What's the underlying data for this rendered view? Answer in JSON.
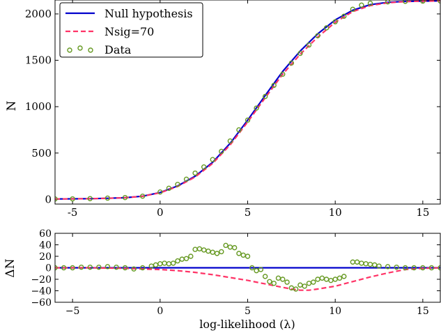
{
  "chart_data": [
    {
      "type": "line",
      "title": "",
      "xlabel": "",
      "ylabel": "N",
      "xlim": [
        -6,
        16
      ],
      "ylim": [
        -50,
        2150
      ],
      "xticks": [
        -5,
        0,
        5,
        10,
        15
      ],
      "yticks": [
        0,
        500,
        1000,
        1500,
        2000
      ],
      "x_tick_labels": [
        "-5",
        "0",
        "5",
        "10",
        "15"
      ],
      "y_tick_labels": [
        "0",
        "500",
        "1000",
        "1500",
        "2000"
      ],
      "grid": false,
      "legend_position": "top-left",
      "legend": [
        {
          "label": "Null hypothesis",
          "style": "solid-line",
          "color": "#0000cc"
        },
        {
          "label": "Nsig=70",
          "style": "dashed-line",
          "color": "#ff3366"
        },
        {
          "label": "Data",
          "style": "open-circles",
          "color": "#669922"
        }
      ],
      "series": [
        {
          "name": "Null hypothesis",
          "style": "solid-line",
          "color": "#0000cc",
          "x": [
            -6,
            -5,
            -4,
            -3,
            -2,
            -1,
            0,
            1,
            2,
            3,
            4,
            5,
            6,
            7,
            8,
            9,
            10,
            11,
            12,
            13,
            14,
            15,
            16
          ],
          "y": [
            5,
            6,
            8,
            12,
            18,
            35,
            75,
            145,
            250,
            400,
            605,
            855,
            1120,
            1380,
            1600,
            1785,
            1935,
            2040,
            2100,
            2125,
            2135,
            2138,
            2140
          ]
        },
        {
          "name": "Nsig=70",
          "style": "dashed-line",
          "color": "#ff3366",
          "x": [
            -6,
            -5,
            -4,
            -3,
            -2,
            -1,
            0,
            1,
            2,
            3,
            4,
            5,
            6,
            7,
            8,
            9,
            10,
            11,
            12,
            13,
            14,
            15,
            16
          ],
          "y": [
            5,
            6,
            8,
            12,
            18,
            34,
            72,
            140,
            242,
            388,
            588,
            835,
            1095,
            1350,
            1565,
            1750,
            1910,
            2025,
            2090,
            2120,
            2133,
            2138,
            2140
          ]
        },
        {
          "name": "Data",
          "style": "open-circles",
          "color": "#669922",
          "x": [
            -6,
            -5,
            -4,
            -3,
            -2,
            -1,
            0,
            0.5,
            1,
            1.5,
            2,
            2.5,
            3,
            3.5,
            4,
            4.5,
            5,
            5.5,
            6,
            6.5,
            7,
            7.5,
            8,
            8.5,
            9,
            9.5,
            10,
            10.5,
            11,
            11.5,
            12,
            13,
            14,
            15,
            16
          ],
          "y": [
            5,
            6,
            9,
            14,
            20,
            35,
            80,
            120,
            162,
            218,
            284,
            350,
            430,
            518,
            630,
            750,
            855,
            985,
            1110,
            1230,
            1350,
            1470,
            1575,
            1665,
            1765,
            1850,
            1915,
            1975,
            2050,
            2095,
            2115,
            2130,
            2136,
            2138,
            2140
          ]
        }
      ]
    },
    {
      "type": "line",
      "title": "",
      "xlabel": "log-likelihood (λ)",
      "ylabel": "ΔN",
      "xlim": [
        -6,
        16
      ],
      "ylim": [
        -60,
        60
      ],
      "xticks": [
        -5,
        0,
        5,
        10,
        15
      ],
      "yticks": [
        -60,
        -40,
        -20,
        0,
        20,
        40,
        60
      ],
      "x_tick_labels": [
        "−5",
        "0",
        "5",
        "10",
        "15"
      ],
      "y_tick_labels": [
        "−60",
        "−40",
        "−20",
        "0",
        "20",
        "40",
        "60"
      ],
      "grid": false,
      "series": [
        {
          "name": "Null hypothesis",
          "style": "solid-line",
          "color": "#0000cc",
          "x": [
            -6,
            16
          ],
          "y": [
            0,
            0
          ]
        },
        {
          "name": "Nsig=70",
          "style": "dashed-line",
          "color": "#ff3366",
          "x": [
            -6,
            -4,
            -2,
            0,
            1,
            2,
            3,
            4,
            5,
            6,
            7,
            7.5,
            8,
            8.5,
            9,
            10,
            11,
            12,
            13,
            14,
            15,
            16
          ],
          "y": [
            0,
            0,
            -1,
            -3,
            -5,
            -8,
            -12,
            -17,
            -22,
            -28,
            -34,
            -37,
            -39,
            -39,
            -37,
            -32,
            -24,
            -16,
            -9,
            -3,
            -1,
            0
          ]
        },
        {
          "name": "Data",
          "style": "open-circles",
          "color": "#669922",
          "x": [
            -6,
            -5.5,
            -5,
            -4.5,
            -4,
            -3.5,
            -3,
            -2.5,
            -2,
            -1.5,
            -1,
            -0.5,
            -0.25,
            0,
            0.25,
            0.5,
            0.75,
            1,
            1.25,
            1.5,
            1.75,
            2,
            2.25,
            2.5,
            2.75,
            3,
            3.25,
            3.5,
            3.75,
            4,
            4.25,
            4.5,
            4.75,
            5,
            5.25,
            5.5,
            5.75,
            6,
            6.25,
            6.5,
            6.75,
            7,
            7.25,
            7.5,
            7.75,
            8,
            8.25,
            8.5,
            8.75,
            9,
            9.25,
            9.5,
            9.75,
            10,
            10.25,
            10.5,
            11,
            11.25,
            11.5,
            11.75,
            12,
            12.25,
            12.5,
            13,
            13.5,
            14,
            14.5,
            15,
            15.5,
            16
          ],
          "y": [
            0,
            0,
            0,
            1,
            1,
            1,
            2,
            1,
            0,
            -2,
            0,
            3,
            5,
            7,
            8,
            7,
            8,
            12,
            15,
            16,
            20,
            32,
            33,
            31,
            29,
            27,
            25,
            28,
            39,
            36,
            35,
            25,
            22,
            20,
            0,
            -5,
            -3,
            -15,
            -24,
            -27,
            -18,
            -20,
            -25,
            -35,
            -37,
            -30,
            -32,
            -27,
            -25,
            -20,
            -18,
            -20,
            -22,
            -20,
            -18,
            -15,
            10,
            10,
            8,
            7,
            6,
            5,
            3,
            2,
            1,
            0,
            0,
            0,
            0,
            0
          ]
        }
      ]
    }
  ]
}
